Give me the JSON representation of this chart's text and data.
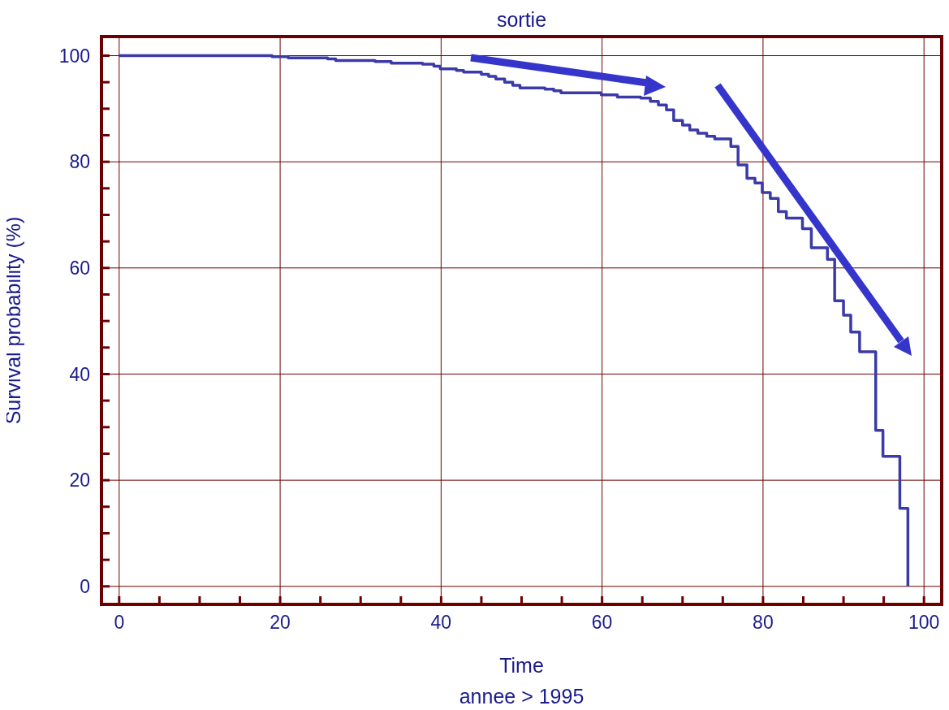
{
  "chart_data": {
    "type": "step",
    "title": "sortie",
    "xlabel": "Time",
    "ylabel": "Survival probability (%)",
    "annotations": [
      "annee > 1995"
    ],
    "x": [
      0,
      19.0,
      21.0,
      25.9,
      26.9,
      31.8,
      33.8,
      37.7,
      39.1,
      39.9,
      41.9,
      42.8,
      45.0,
      45.9,
      46.8,
      47.9,
      48.9,
      49.8,
      52.9,
      54.0,
      54.9,
      59.9,
      61.9,
      64.8,
      66.0,
      67.0,
      68.0,
      68.9,
      70.0,
      70.9,
      71.9,
      73.0,
      74.0,
      76.0,
      76.9,
      78.0,
      79.0,
      79.9,
      80.9,
      81.9,
      82.9,
      84.9,
      86.0,
      88.0,
      88.9,
      90.0,
      90.9,
      92.0,
      94.0,
      94.9,
      97.0,
      98.0
    ],
    "series": [
      {
        "color": "#3a3aa8",
        "values": [
          100,
          99.8,
          99.6,
          99.4,
          99.1,
          98.9,
          98.6,
          98.4,
          98.0,
          97.5,
          97.2,
          96.9,
          96.5,
          96.1,
          95.6,
          95.0,
          94.4,
          93.9,
          93.7,
          93.4,
          93.0,
          92.6,
          92.2,
          92.0,
          91.4,
          90.7,
          89.8,
          87.8,
          86.9,
          86.0,
          85.4,
          84.8,
          84.3,
          82.9,
          79.4,
          76.9,
          76.0,
          74.2,
          73.1,
          70.6,
          69.4,
          67.4,
          63.8,
          61.6,
          53.8,
          51.1,
          47.9,
          44.2,
          29.4,
          24.5,
          14.7,
          0
        ]
      }
    ],
    "xlim": [
      -2.2,
      102.2
    ],
    "ylim": [
      -3.4,
      103.6
    ],
    "xticks": [
      0,
      {
        "value": 5,
        "label": null
      },
      {
        "value": 10,
        "label": null
      },
      {
        "value": 15,
        "label": null
      },
      20,
      {
        "value": 25,
        "label": null
      },
      {
        "value": 30,
        "label": null
      },
      {
        "value": 35,
        "label": null
      },
      40,
      {
        "value": 45,
        "label": null
      },
      {
        "value": 50,
        "label": null
      },
      {
        "value": 55,
        "label": null
      },
      60,
      {
        "value": 65,
        "label": null
      },
      {
        "value": 70,
        "label": null
      },
      {
        "value": 75,
        "label": null
      },
      80,
      {
        "value": 85,
        "label": null
      },
      {
        "value": 90,
        "label": null
      },
      {
        "value": 95,
        "label": null
      },
      100
    ],
    "yticks": [
      0,
      {
        "value": 5,
        "label": null
      },
      {
        "value": 10,
        "label": null
      },
      {
        "value": 15,
        "label": null
      },
      20,
      {
        "value": 25,
        "label": null
      },
      {
        "value": 30,
        "label": null
      },
      {
        "value": 35,
        "label": null
      },
      40,
      {
        "value": 45,
        "label": null
      },
      {
        "value": 50,
        "label": null
      },
      {
        "value": 55,
        "label": null
      },
      60,
      {
        "value": 65,
        "label": null
      },
      {
        "value": 70,
        "label": null
      },
      {
        "value": 75,
        "label": null
      },
      80,
      {
        "value": 85,
        "label": null
      },
      {
        "value": 90,
        "label": null
      },
      {
        "value": 95,
        "label": null
      },
      100
    ],
    "grid": true,
    "marker": "none",
    "line_style": "solid"
  }
}
